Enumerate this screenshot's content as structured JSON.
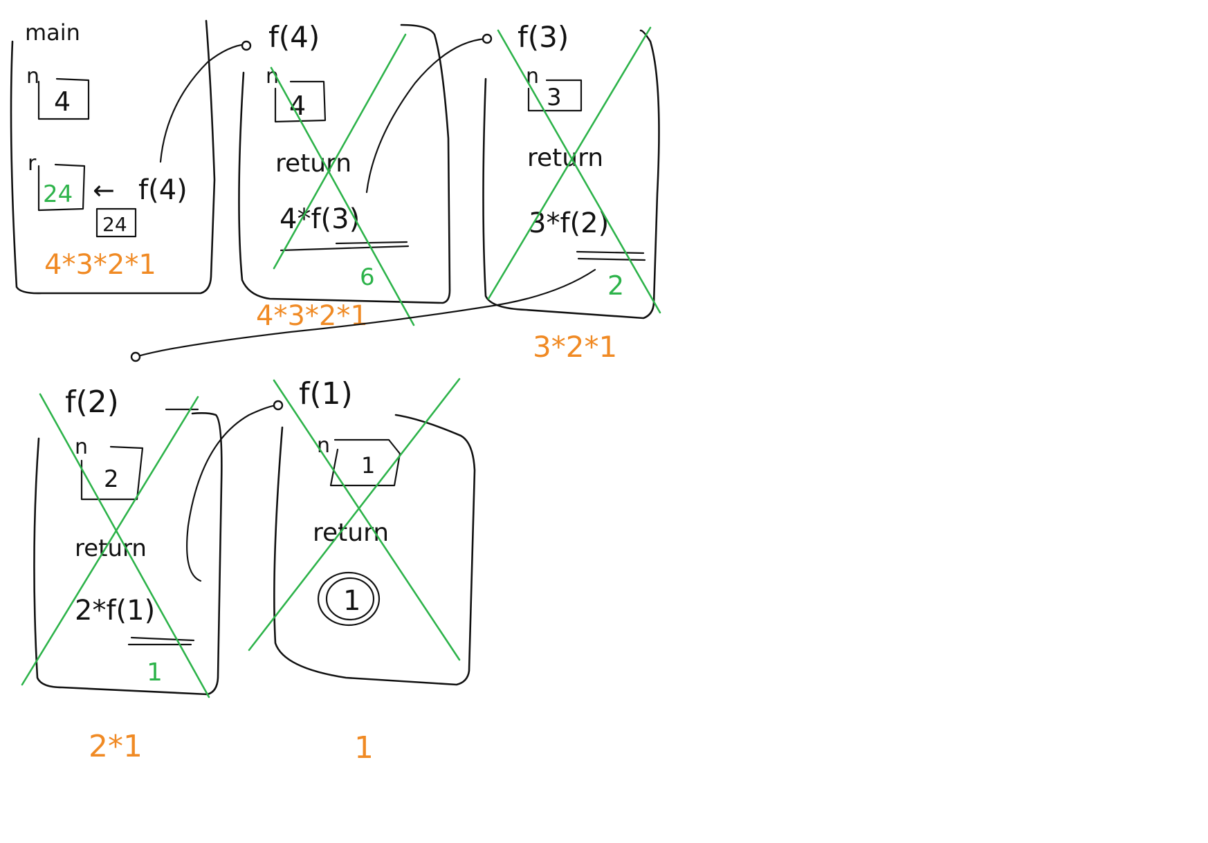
{
  "colors": {
    "ink": "#111111",
    "green": "#2db34a",
    "orange": "#f08a24"
  },
  "frames": {
    "main": {
      "title": "main",
      "n_label": "n",
      "n_value": "4",
      "r_label": "r",
      "r_value": "24",
      "arrow_glyph": "←",
      "call": "f(4)",
      "return_box": "24",
      "expansion": "4*3*2*1"
    },
    "f4": {
      "title": "f(4)",
      "n_label": "n",
      "n_value": "4",
      "return_label": "return",
      "expression": "4*f(3)",
      "result": "6",
      "expansion": "4*3*2*1"
    },
    "f3": {
      "title": "f(3)",
      "n_label": "n",
      "n_value": "3",
      "return_label": "return",
      "expression": "3*f(2)",
      "result": "2",
      "expansion": "3*2*1"
    },
    "f2": {
      "title": "f(2)",
      "n_label": "n",
      "n_value": "2",
      "return_label": "return",
      "expression": "2*f(1)",
      "result": "1",
      "expansion": "2*1"
    },
    "f1": {
      "title": "f(1)",
      "n_label": "n",
      "n_value": "1",
      "return_label": "return",
      "return_value": "1",
      "expansion": "1"
    }
  }
}
